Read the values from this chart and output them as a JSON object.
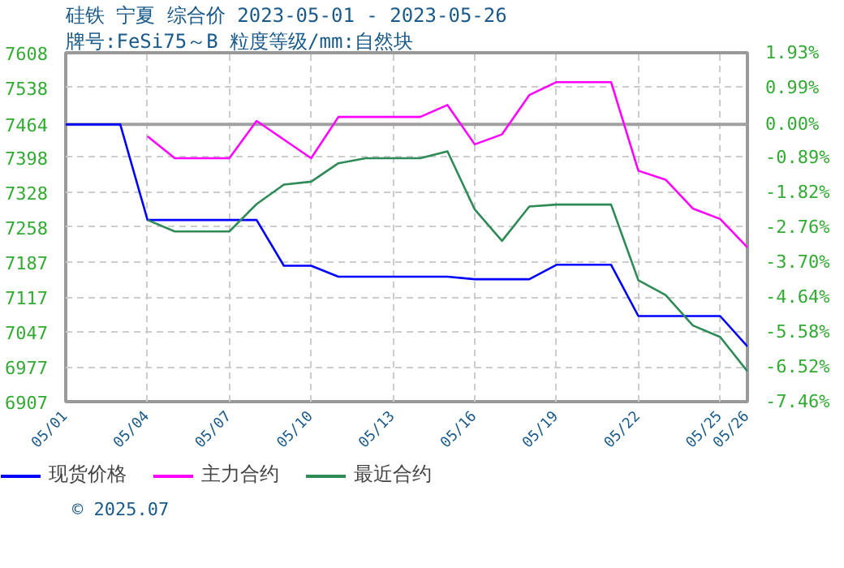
{
  "chart_data": {
    "type": "line",
    "title": "硅铁 宁夏 综合价 2023-05-01 - 2023-05-26",
    "subtitle": "牌号:FeSi75～B 粒度等级/mm:自然块",
    "xlim": [
      "2023-05-01",
      "2023-05-26"
    ],
    "xticks": [
      {
        "value": "2023-05-01",
        "label": "05/01"
      },
      {
        "value": "2023-05-04",
        "label": "05/04"
      },
      {
        "value": "2023-05-07",
        "label": "05/07"
      },
      {
        "value": "2023-05-10",
        "label": "05/10"
      },
      {
        "value": "2023-05-13",
        "label": "05/13"
      },
      {
        "value": "2023-05-16",
        "label": "05/16"
      },
      {
        "value": "2023-05-19",
        "label": "05/19"
      },
      {
        "value": "2023-05-22",
        "label": "05/22"
      },
      {
        "value": "2023-05-25",
        "label": "05/25"
      },
      {
        "value": "2023-05-26",
        "label": "05/26"
      }
    ],
    "ylim": [
      6907,
      7608
    ],
    "yticks": [
      6907,
      6977,
      7047,
      7117,
      7187,
      7258,
      7328,
      7398,
      7464,
      7538,
      7608
    ],
    "y2lim": [
      -7.46,
      1.93
    ],
    "y2ticks": [
      {
        "value": -7.46,
        "label": "-7.46%"
      },
      {
        "value": -6.52,
        "label": "-6.52%"
      },
      {
        "value": -5.58,
        "label": "-5.58%"
      },
      {
        "value": -4.64,
        "label": "-4.64%"
      },
      {
        "value": -3.7,
        "label": "-3.70%"
      },
      {
        "value": -2.76,
        "label": "-2.76%"
      },
      {
        "value": -1.82,
        "label": "-1.82%"
      },
      {
        "value": -0.89,
        "label": "-0.89%"
      },
      {
        "value": 0,
        "label": "0.00%"
      },
      {
        "value": 0.99,
        "label": "0.99%"
      },
      {
        "value": 1.93,
        "label": "1.93%"
      }
    ],
    "grid": true,
    "legend": "bottom",
    "line_style": "solid",
    "marker": "none",
    "ref_lines": [
      {
        "axis": "y",
        "value": 7464,
        "color": "#a0a0a0"
      }
    ],
    "annotations": [
      "© 2025.07"
    ],
    "series": [
      {
        "name": "现货价格",
        "color": "#0000ff",
        "x": [
          "2023-05-01",
          "2023-05-03",
          "2023-05-04",
          "2023-05-08",
          "2023-05-09",
          "2023-05-10",
          "2023-05-11",
          "2023-05-15",
          "2023-05-16",
          "2023-05-18",
          "2023-05-19",
          "2023-05-21",
          "2023-05-22",
          "2023-05-25",
          "2023-05-26"
        ],
        "values": [
          7464,
          7464,
          7272,
          7272,
          7180,
          7180,
          7158,
          7158,
          7153,
          7153,
          7182,
          7182,
          7079,
          7079,
          7018
        ]
      },
      {
        "name": "主力合约",
        "color": "#ff00ff",
        "x": [
          "2023-05-04",
          "2023-05-05",
          "2023-05-07",
          "2023-05-08",
          "2023-05-10",
          "2023-05-11",
          "2023-05-14",
          "2023-05-15",
          "2023-05-16",
          "2023-05-17",
          "2023-05-18",
          "2023-05-19",
          "2023-05-21",
          "2023-05-22",
          "2023-05-23",
          "2023-05-24",
          "2023-05-25",
          "2023-05-26"
        ],
        "values": [
          7440,
          7396,
          7396,
          7471,
          7396,
          7479,
          7479,
          7503,
          7424,
          7444,
          7523,
          7549,
          7549,
          7371,
          7353,
          7295,
          7274,
          7217
        ]
      },
      {
        "name": "最近合约",
        "color": "#2e8b57",
        "x": [
          "2023-05-04",
          "2023-05-05",
          "2023-05-07",
          "2023-05-08",
          "2023-05-09",
          "2023-05-10",
          "2023-05-11",
          "2023-05-12",
          "2023-05-14",
          "2023-05-15",
          "2023-05-16",
          "2023-05-17",
          "2023-05-18",
          "2023-05-19",
          "2023-05-21",
          "2023-05-22",
          "2023-05-23",
          "2023-05-24",
          "2023-05-25",
          "2023-05-26"
        ],
        "values": [
          7272,
          7249,
          7249,
          7304,
          7343,
          7349,
          7386,
          7396,
          7396,
          7410,
          7293,
          7230,
          7299,
          7303,
          7303,
          7151,
          7121,
          7060,
          7037,
          6968
        ]
      }
    ]
  }
}
